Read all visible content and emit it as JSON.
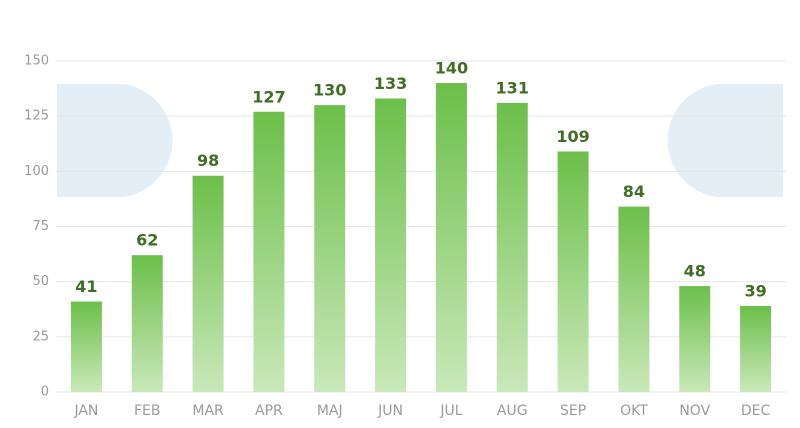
{
  "chart_data": {
    "type": "bar",
    "categories": [
      "JAN",
      "FEB",
      "MAR",
      "APR",
      "MAJ",
      "JUN",
      "JUL",
      "AUG",
      "SEP",
      "OKT",
      "NOV",
      "DEC"
    ],
    "values": [
      41,
      62,
      98,
      127,
      130,
      133,
      140,
      131,
      109,
      84,
      48,
      39
    ],
    "color": "#6cbf4a",
    "ylim": [
      0,
      150
    ],
    "yticks": [
      0,
      25,
      50,
      75,
      100,
      125,
      150
    ],
    "grid": true
  }
}
